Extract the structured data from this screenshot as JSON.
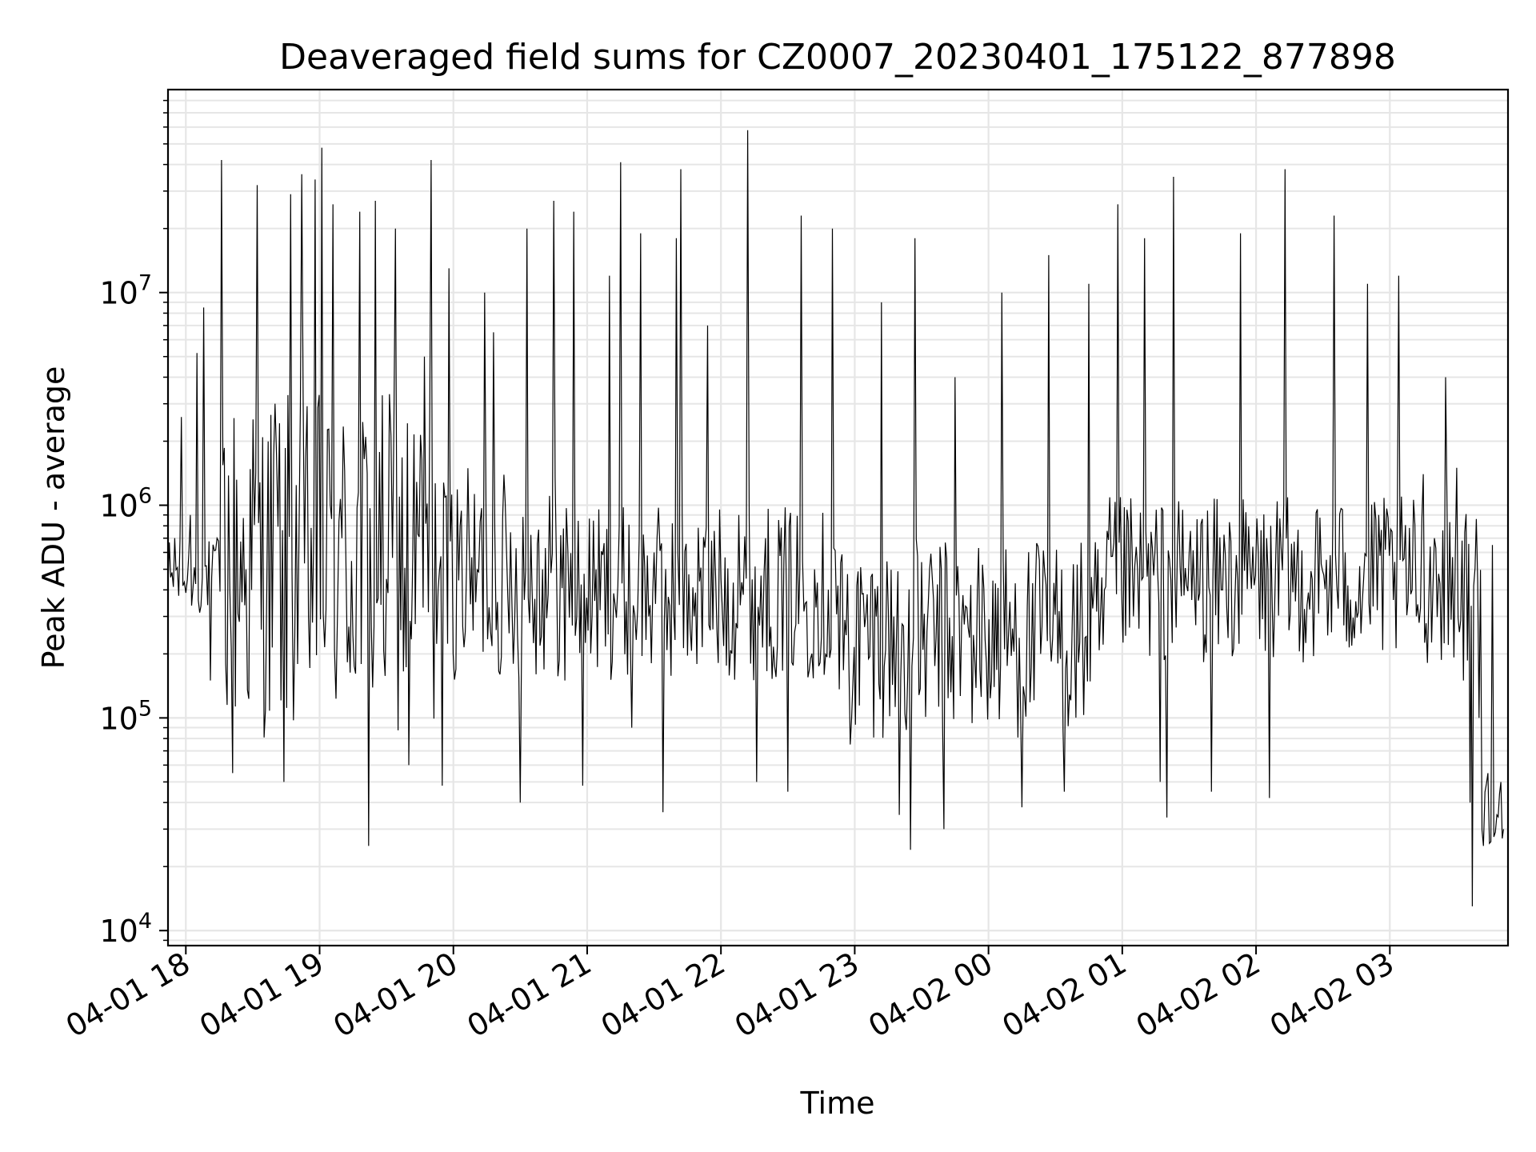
{
  "chart_data": {
    "type": "line",
    "title": "Deaveraged field sums for CZ0007_20230401_175122_877898",
    "xlabel": "Time",
    "ylabel": "Peak ADU - average",
    "yscale": "log",
    "ylim": [
      8500,
      90000000
    ],
    "xlim": [
      "2023-04-01 17:52",
      "2023-04-02 03:53"
    ],
    "grid": true,
    "legend": "none",
    "line_color": "#000000",
    "x_ticks": [
      {
        "t": "2023-04-01 18:00",
        "label": "04-01 18"
      },
      {
        "t": "2023-04-01 19:00",
        "label": "04-01 19"
      },
      {
        "t": "2023-04-01 20:00",
        "label": "04-01 20"
      },
      {
        "t": "2023-04-01 21:00",
        "label": "04-01 21"
      },
      {
        "t": "2023-04-01 22:00",
        "label": "04-01 22"
      },
      {
        "t": "2023-04-01 23:00",
        "label": "04-01 23"
      },
      {
        "t": "2023-04-02 00:00",
        "label": "04-02 00"
      },
      {
        "t": "2023-04-02 01:00",
        "label": "04-02 01"
      },
      {
        "t": "2023-04-02 02:00",
        "label": "04-02 02"
      },
      {
        "t": "2023-04-02 03:00",
        "label": "04-02 03"
      }
    ],
    "y_ticks": [
      {
        "value": 10000,
        "base": "10",
        "exp": "4"
      },
      {
        "value": 100000,
        "base": "10",
        "exp": "5"
      },
      {
        "value": 1000000,
        "base": "10",
        "exp": "6"
      },
      {
        "value": 10000000,
        "base": "10",
        "exp": "7"
      }
    ],
    "series": [
      {
        "points": [
          [
            "2023-04-01 17:52",
            420000
          ],
          [
            "2023-04-01 17:55",
            700000
          ],
          [
            "2023-04-01 17:58",
            2600000
          ],
          [
            "2023-04-01 18:02",
            900000
          ],
          [
            "2023-04-01 18:05",
            5200000
          ],
          [
            "2023-04-01 18:08",
            8500000
          ],
          [
            "2023-04-01 18:11",
            150000
          ],
          [
            "2023-04-01 18:14",
            700000
          ],
          [
            "2023-04-01 18:16",
            42000000
          ],
          [
            "2023-04-01 18:21",
            55000
          ],
          [
            "2023-04-01 18:27",
            500000
          ],
          [
            "2023-04-01 18:32",
            32000000
          ],
          [
            "2023-04-01 18:40",
            3000000
          ],
          [
            "2023-04-01 18:44",
            50000
          ],
          [
            "2023-04-01 18:47",
            29000000
          ],
          [
            "2023-04-01 18:52",
            36000000
          ],
          [
            "2023-04-01 18:55",
            300000
          ],
          [
            "2023-04-01 18:58",
            34000000
          ],
          [
            "2023-04-01 19:01",
            48000000
          ],
          [
            "2023-04-01 19:06",
            26000000
          ],
          [
            "2023-04-01 19:10",
            700000
          ],
          [
            "2023-04-01 19:18",
            24000000
          ],
          [
            "2023-04-01 19:22",
            25000
          ],
          [
            "2023-04-01 19:25",
            27000000
          ],
          [
            "2023-04-01 19:30",
            450000
          ],
          [
            "2023-04-01 19:34",
            20000000
          ],
          [
            "2023-04-01 19:40",
            60000
          ],
          [
            "2023-04-01 19:47",
            5000000
          ],
          [
            "2023-04-01 19:50",
            42000000
          ],
          [
            "2023-04-01 19:55",
            48000
          ],
          [
            "2023-04-01 19:58",
            13000000
          ],
          [
            "2023-04-01 20:03",
            800000
          ],
          [
            "2023-04-01 20:10",
            350000
          ],
          [
            "2023-04-01 20:14",
            10000000
          ],
          [
            "2023-04-01 20:18",
            6500000
          ],
          [
            "2023-04-01 20:25",
            250000
          ],
          [
            "2023-04-01 20:30",
            40000
          ],
          [
            "2023-04-01 20:33",
            20000000
          ],
          [
            "2023-04-01 20:40",
            500000
          ],
          [
            "2023-04-01 20:45",
            27000000
          ],
          [
            "2023-04-01 20:50",
            150000
          ],
          [
            "2023-04-01 20:54",
            24000000
          ],
          [
            "2023-04-01 20:58",
            48000
          ],
          [
            "2023-04-01 21:04",
            500000
          ],
          [
            "2023-04-01 21:10",
            12000000
          ],
          [
            "2023-04-01 21:15",
            41000000
          ],
          [
            "2023-04-01 21:20",
            90000
          ],
          [
            "2023-04-01 21:24",
            19000000
          ],
          [
            "2023-04-01 21:30",
            600000
          ],
          [
            "2023-04-01 21:34",
            36000
          ],
          [
            "2023-04-01 21:40",
            18000000
          ],
          [
            "2023-04-01 21:42",
            38000000
          ],
          [
            "2023-04-01 21:48",
            300000
          ],
          [
            "2023-04-01 21:54",
            7000000
          ],
          [
            "2023-04-01 22:00",
            450000
          ],
          [
            "2023-04-01 22:08",
            900000
          ],
          [
            "2023-04-01 22:12",
            58000000
          ],
          [
            "2023-04-01 22:16",
            50000
          ],
          [
            "2023-04-01 22:20",
            700000
          ],
          [
            "2023-04-01 22:30",
            45000
          ],
          [
            "2023-04-01 22:36",
            23000000
          ],
          [
            "2023-04-01 22:42",
            500000
          ],
          [
            "2023-04-01 22:50",
            20000000
          ],
          [
            "2023-04-01 22:58",
            75000
          ],
          [
            "2023-04-01 23:05",
            300000
          ],
          [
            "2023-04-01 23:12",
            9000000
          ],
          [
            "2023-04-01 23:20",
            35000
          ],
          [
            "2023-04-01 23:25",
            24000
          ],
          [
            "2023-04-01 23:27",
            18000000
          ],
          [
            "2023-04-01 23:33",
            350000
          ],
          [
            "2023-04-01 23:40",
            30000
          ],
          [
            "2023-04-01 23:45",
            4000000
          ],
          [
            "2023-04-01 23:55",
            400000
          ],
          [
            "2023-04-02 00:06",
            10000000
          ],
          [
            "2023-04-02 00:15",
            38000
          ],
          [
            "2023-04-02 00:21",
            400000
          ],
          [
            "2023-04-02 00:27",
            15000000
          ],
          [
            "2023-04-02 00:34",
            45000
          ],
          [
            "2023-04-02 00:45",
            11000000
          ],
          [
            "2023-04-02 00:52",
            400000
          ],
          [
            "2023-04-02 00:58",
            26000000
          ],
          [
            "2023-04-02 01:05",
            300000
          ],
          [
            "2023-04-02 01:10",
            18000000
          ],
          [
            "2023-04-02 01:17",
            50000
          ],
          [
            "2023-04-02 01:20",
            34000
          ],
          [
            "2023-04-02 01:23",
            35000000
          ],
          [
            "2023-04-02 01:30",
            600000
          ],
          [
            "2023-04-02 01:40",
            45000
          ],
          [
            "2023-04-02 01:45",
            400000
          ],
          [
            "2023-04-02 01:53",
            19000000
          ],
          [
            "2023-04-02 02:01",
            600000
          ],
          [
            "2023-04-02 02:06",
            42000
          ],
          [
            "2023-04-02 02:13",
            38000000
          ],
          [
            "2023-04-02 02:20",
            300000
          ],
          [
            "2023-04-02 02:35",
            23000000
          ],
          [
            "2023-04-02 02:40",
            600000
          ],
          [
            "2023-04-02 02:50",
            11000000
          ],
          [
            "2023-04-02 02:55",
            900000
          ],
          [
            "2023-04-02 03:04",
            12000000
          ],
          [
            "2023-04-02 03:10",
            400000
          ],
          [
            "2023-04-02 03:15",
            1400000
          ],
          [
            "2023-04-02 03:20",
            700000
          ],
          [
            "2023-04-02 03:25",
            4000000
          ],
          [
            "2023-04-02 03:30",
            1500000
          ],
          [
            "2023-04-02 03:33",
            150000
          ],
          [
            "2023-04-02 03:36",
            40000
          ],
          [
            "2023-04-02 03:37",
            13000
          ],
          [
            "2023-04-02 03:40",
            100000
          ],
          [
            "2023-04-02 03:42",
            25000
          ],
          [
            "2023-04-02 03:44",
            55000
          ],
          [
            "2023-04-02 03:46",
            650000
          ],
          [
            "2023-04-02 03:48",
            35000
          ],
          [
            "2023-04-02 03:51",
            30000
          ]
        ]
      }
    ]
  }
}
